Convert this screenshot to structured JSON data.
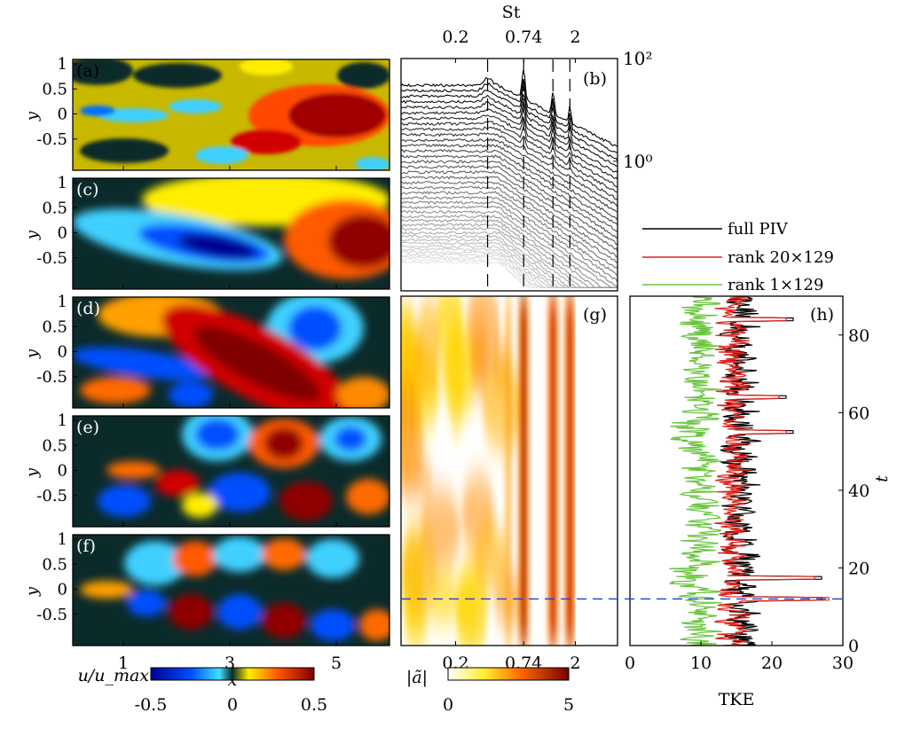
{
  "colors": {
    "axis": "#000000",
    "dashed_marker": "#1f3fd6",
    "full_piv": "#000000",
    "rank20": "#e0221c",
    "rank1": "#66c43a"
  },
  "panels": {
    "a": "(a)",
    "b": "(b)",
    "c": "(c)",
    "d": "(d)",
    "e": "(e)",
    "f": "(f)",
    "g": "(g)",
    "h": "(h)"
  },
  "fields": {
    "ylabel": "y",
    "xlabel": "x",
    "y_ticks": [
      "1",
      "0.5",
      "0",
      "-0.5"
    ],
    "x_ticks": [
      "1",
      "3",
      "5"
    ]
  },
  "colorbars": {
    "u": {
      "label": "u/u_max",
      "ticks": [
        "-0.5",
        "0",
        "0.5"
      ]
    },
    "a": {
      "label": "|ã|",
      "ticks": [
        "0",
        "5"
      ]
    }
  },
  "chart_data": [
    {
      "id": "b",
      "type": "line",
      "title": "",
      "xlabel_top": "St",
      "x_ticks_top": [
        "0.2",
        "0.74",
        "2"
      ],
      "y_ticks_right": [
        "10²",
        "10⁰"
      ],
      "yscale": "log",
      "xscale": "log",
      "xlim": [
        0.07,
        4.5
      ],
      "ylim": [
        0.003,
        100
      ],
      "dashed_verticals_St": [
        0.37,
        0.74,
        1.3,
        1.8
      ],
      "peaks_St": [
        0.37,
        0.74,
        1.3,
        1.8
      ],
      "mode_count": 40,
      "top_mode_peak_value": 30
    },
    {
      "id": "g",
      "type": "heatmap",
      "x_ticks": [
        "0.2",
        "0.74",
        "2"
      ],
      "xscale": "log",
      "xlim": [
        0.07,
        4.5
      ],
      "ylim": [
        0,
        90
      ],
      "dominant_St": [
        0.74,
        1.3,
        1.8
      ],
      "color_range": [
        0,
        5
      ],
      "marker_t": 12
    },
    {
      "id": "h",
      "type": "line",
      "xlabel": "TKE",
      "ylabel_right": "t",
      "x_ticks": [
        "0",
        "10",
        "20",
        "30"
      ],
      "y_ticks_right": [
        "0",
        "20",
        "40",
        "60",
        "80"
      ],
      "xlim": [
        0,
        30
      ],
      "ylim": [
        0,
        90
      ],
      "marker_t": 12,
      "legend": [
        {
          "label": "full PIV",
          "color": "#000000"
        },
        {
          "label": "rank 20×129",
          "color": "#e0221c"
        },
        {
          "label": "rank 1×129",
          "color": "#66c43a"
        }
      ],
      "series": [
        {
          "name": "full PIV",
          "mean": 15.5,
          "max_value": 27
        },
        {
          "name": "rank 20×129",
          "mean": 14.5,
          "max_value": 28
        },
        {
          "name": "rank 1×129",
          "mean": 10,
          "max_value": 13
        }
      ]
    }
  ]
}
